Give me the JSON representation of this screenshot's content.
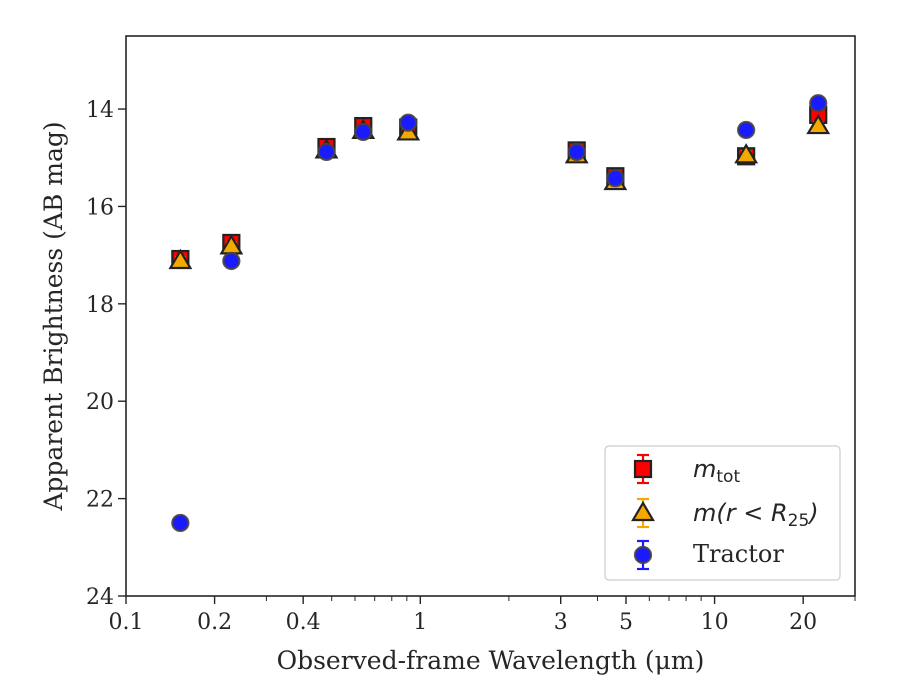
{
  "chart_data": {
    "type": "scatter",
    "xlabel": "Observed-frame Wavelength (μm)",
    "ylabel": "Apparent Brightness (AB mag)",
    "xscale": "log",
    "xlim": [
      0.1,
      30
    ],
    "ylim": [
      24,
      12.5
    ],
    "y_inverted": true,
    "x_ticks": [
      0.1,
      0.2,
      0.4,
      1,
      3,
      5,
      10,
      20
    ],
    "x_tick_labels": [
      "0.1",
      "0.2",
      "0.4",
      "1",
      "3",
      "5",
      "10",
      "20"
    ],
    "y_ticks": [
      14,
      16,
      18,
      20,
      22,
      24
    ],
    "y_tick_labels": [
      "14",
      "16",
      "18",
      "20",
      "22",
      "24"
    ],
    "grid": false,
    "legend_position": "lower-right",
    "series": [
      {
        "name_math": "m",
        "name_sub": "tot",
        "marker": "square",
        "color": "#ff0000",
        "errorbar_color": "#ff0000",
        "points": [
          {
            "x": 0.153,
            "y": 17.08
          },
          {
            "x": 0.228,
            "y": 16.75
          },
          {
            "x": 0.48,
            "y": 14.78
          },
          {
            "x": 0.64,
            "y": 14.35
          },
          {
            "x": 0.91,
            "y": 14.38
          },
          {
            "x": 3.4,
            "y": 14.85
          },
          {
            "x": 4.6,
            "y": 15.38
          },
          {
            "x": 12.8,
            "y": 14.97
          },
          {
            "x": 22.5,
            "y": 14.12
          }
        ]
      },
      {
        "name_math": "m(r < R",
        "name_sub": "25",
        "name_close": ")",
        "marker": "triangle",
        "color": "#f5a800",
        "errorbar_color": "#f5a800",
        "points": [
          {
            "x": 0.153,
            "y": 17.12
          },
          {
            "x": 0.228,
            "y": 16.82
          },
          {
            "x": 0.48,
            "y": 14.85
          },
          {
            "x": 0.64,
            "y": 14.45
          },
          {
            "x": 0.91,
            "y": 14.48
          },
          {
            "x": 3.4,
            "y": 14.95
          },
          {
            "x": 4.6,
            "y": 15.5
          },
          {
            "x": 12.8,
            "y": 14.95
          },
          {
            "x": 22.5,
            "y": 14.35
          }
        ]
      },
      {
        "name": "Tractor",
        "marker": "circle",
        "color": "#1a1aff",
        "errorbar_color": "#1a1aff",
        "points": [
          {
            "x": 0.153,
            "y": 22.5
          },
          {
            "x": 0.228,
            "y": 17.12
          },
          {
            "x": 0.48,
            "y": 14.88
          },
          {
            "x": 0.64,
            "y": 14.47
          },
          {
            "x": 0.91,
            "y": 14.28
          },
          {
            "x": 3.4,
            "y": 14.88
          },
          {
            "x": 4.6,
            "y": 15.42
          },
          {
            "x": 12.8,
            "y": 14.43
          },
          {
            "x": 22.5,
            "y": 13.88
          }
        ]
      }
    ]
  }
}
